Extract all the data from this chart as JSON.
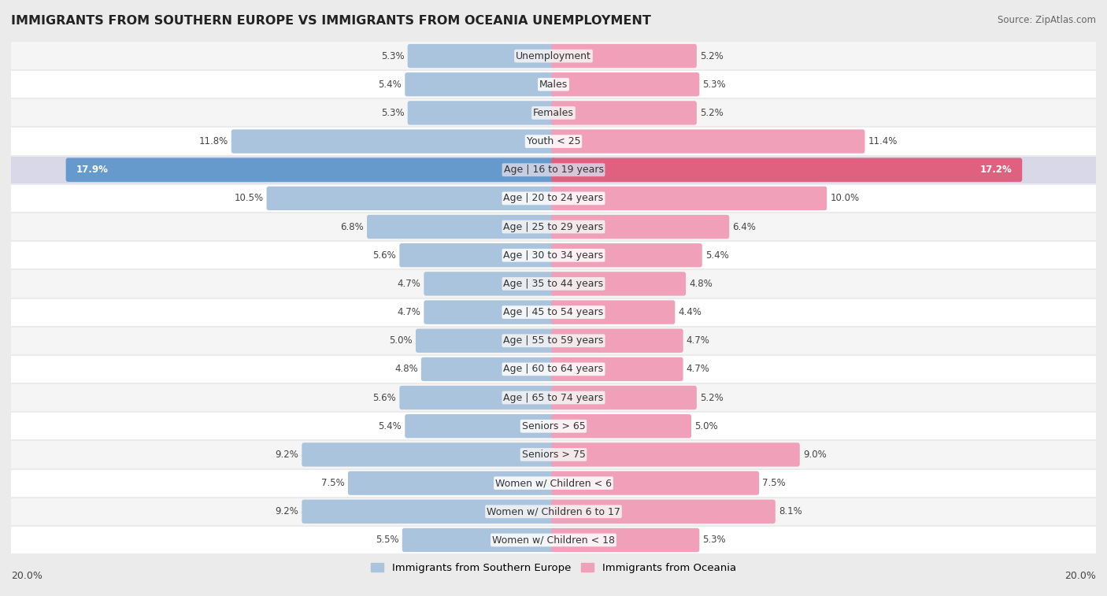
{
  "title": "IMMIGRANTS FROM SOUTHERN EUROPE VS IMMIGRANTS FROM OCEANIA UNEMPLOYMENT",
  "source": "Source: ZipAtlas.com",
  "categories": [
    "Unemployment",
    "Males",
    "Females",
    "Youth < 25",
    "Age | 16 to 19 years",
    "Age | 20 to 24 years",
    "Age | 25 to 29 years",
    "Age | 30 to 34 years",
    "Age | 35 to 44 years",
    "Age | 45 to 54 years",
    "Age | 55 to 59 years",
    "Age | 60 to 64 years",
    "Age | 65 to 74 years",
    "Seniors > 65",
    "Seniors > 75",
    "Women w/ Children < 6",
    "Women w/ Children 6 to 17",
    "Women w/ Children < 18"
  ],
  "left_values": [
    5.3,
    5.4,
    5.3,
    11.8,
    17.9,
    10.5,
    6.8,
    5.6,
    4.7,
    4.7,
    5.0,
    4.8,
    5.6,
    5.4,
    9.2,
    7.5,
    9.2,
    5.5
  ],
  "right_values": [
    5.2,
    5.3,
    5.2,
    11.4,
    17.2,
    10.0,
    6.4,
    5.4,
    4.8,
    4.4,
    4.7,
    4.7,
    5.2,
    5.0,
    9.0,
    7.5,
    8.1,
    5.3
  ],
  "left_color": "#aac4de",
  "right_color": "#f0a0b8",
  "highlight_left_color": "#6699cc",
  "highlight_right_color": "#e06080",
  "left_label": "Immigrants from Southern Europe",
  "right_label": "Immigrants from Oceania",
  "background_color": "#ebebeb",
  "row_color_even": "#f5f5f5",
  "row_color_odd": "#ffffff",
  "highlight_row_color": "#d8d8e8",
  "max_value": 20.0,
  "axis_label": "20.0%",
  "title_fontsize": 11.5,
  "source_fontsize": 8.5,
  "label_fontsize": 9,
  "value_fontsize": 8.5,
  "highlight_row": 4
}
